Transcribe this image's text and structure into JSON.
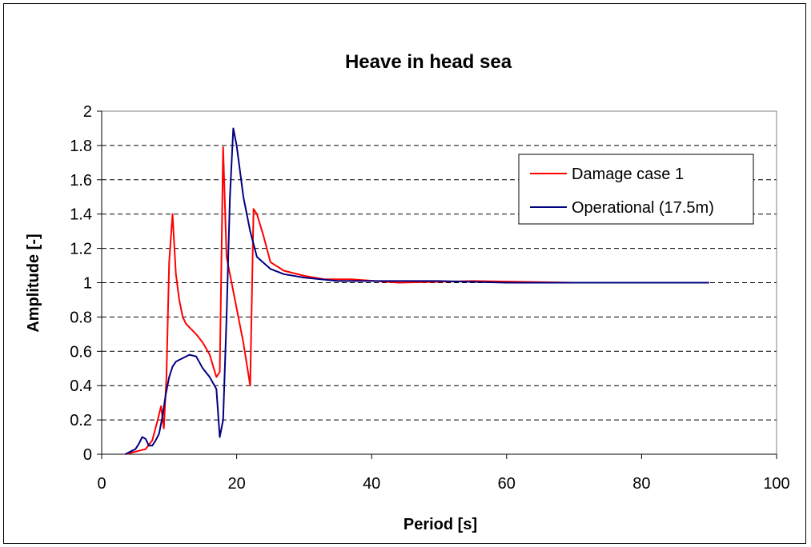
{
  "chart_data": {
    "type": "line",
    "title": "Heave in head sea",
    "xlabel": "Period [s]",
    "ylabel": "Amplitude [-]",
    "xlim": [
      0,
      100
    ],
    "ylim": [
      0,
      2
    ],
    "xticks": [
      "0",
      "20",
      "40",
      "60",
      "80",
      "100"
    ],
    "yticks": [
      "0",
      "0.2",
      "0.4",
      "0.6",
      "0.8",
      "1",
      "1.2",
      "1.4",
      "1.6",
      "1.8",
      "2"
    ],
    "grid": "horizontal dashed",
    "legend_position": "right",
    "series": [
      {
        "name": "Damage case 1",
        "color": "#ff0000",
        "x": [
          3.5,
          4.5,
          5.5,
          6.5,
          7.5,
          8.3,
          8.8,
          9.2,
          9.6,
          10.0,
          10.5,
          11.0,
          11.5,
          12.0,
          12.5,
          13.0,
          14.0,
          15.0,
          16.0,
          17.0,
          17.5,
          18.0,
          18.5,
          19.0,
          19.5,
          20.0,
          21.0,
          22.0,
          22.5,
          23.0,
          24.0,
          25.0,
          27.0,
          30.0,
          33.0,
          37.0,
          44.0,
          55.0,
          70.0,
          90.0
        ],
        "y": [
          0.0,
          0.01,
          0.02,
          0.03,
          0.08,
          0.2,
          0.28,
          0.15,
          0.45,
          1.12,
          1.4,
          1.05,
          0.9,
          0.8,
          0.76,
          0.74,
          0.7,
          0.65,
          0.58,
          0.45,
          0.48,
          1.79,
          1.15,
          1.05,
          0.95,
          0.85,
          0.65,
          0.4,
          1.43,
          1.4,
          1.27,
          1.12,
          1.07,
          1.04,
          1.02,
          1.02,
          1.0,
          1.01,
          1.0,
          1.0
        ]
      },
      {
        "name": "Operational (17.5m)",
        "color": "#000080",
        "x": [
          3.5,
          4.5,
          5.0,
          5.5,
          6.0,
          6.5,
          7.0,
          7.5,
          8.0,
          8.5,
          9.0,
          9.5,
          10.0,
          10.5,
          11.0,
          11.5,
          12.0,
          13.0,
          14.0,
          15.0,
          16.0,
          17.0,
          17.5,
          18.0,
          18.5,
          19.0,
          19.5,
          20.0,
          21.0,
          22.0,
          23.0,
          25.0,
          27.0,
          30.0,
          35.0,
          40.0,
          50.0,
          60.0,
          75.0,
          90.0
        ],
        "y": [
          0.0,
          0.02,
          0.03,
          0.06,
          0.1,
          0.09,
          0.05,
          0.05,
          0.08,
          0.12,
          0.22,
          0.35,
          0.45,
          0.51,
          0.54,
          0.55,
          0.56,
          0.58,
          0.57,
          0.5,
          0.45,
          0.38,
          0.1,
          0.2,
          0.8,
          1.5,
          1.9,
          1.8,
          1.5,
          1.3,
          1.15,
          1.08,
          1.05,
          1.03,
          1.01,
          1.01,
          1.01,
          1.0,
          1.0,
          1.0
        ]
      }
    ]
  },
  "colors": {
    "grid": "#000000",
    "axis": "#808080",
    "frame": "#000000"
  }
}
